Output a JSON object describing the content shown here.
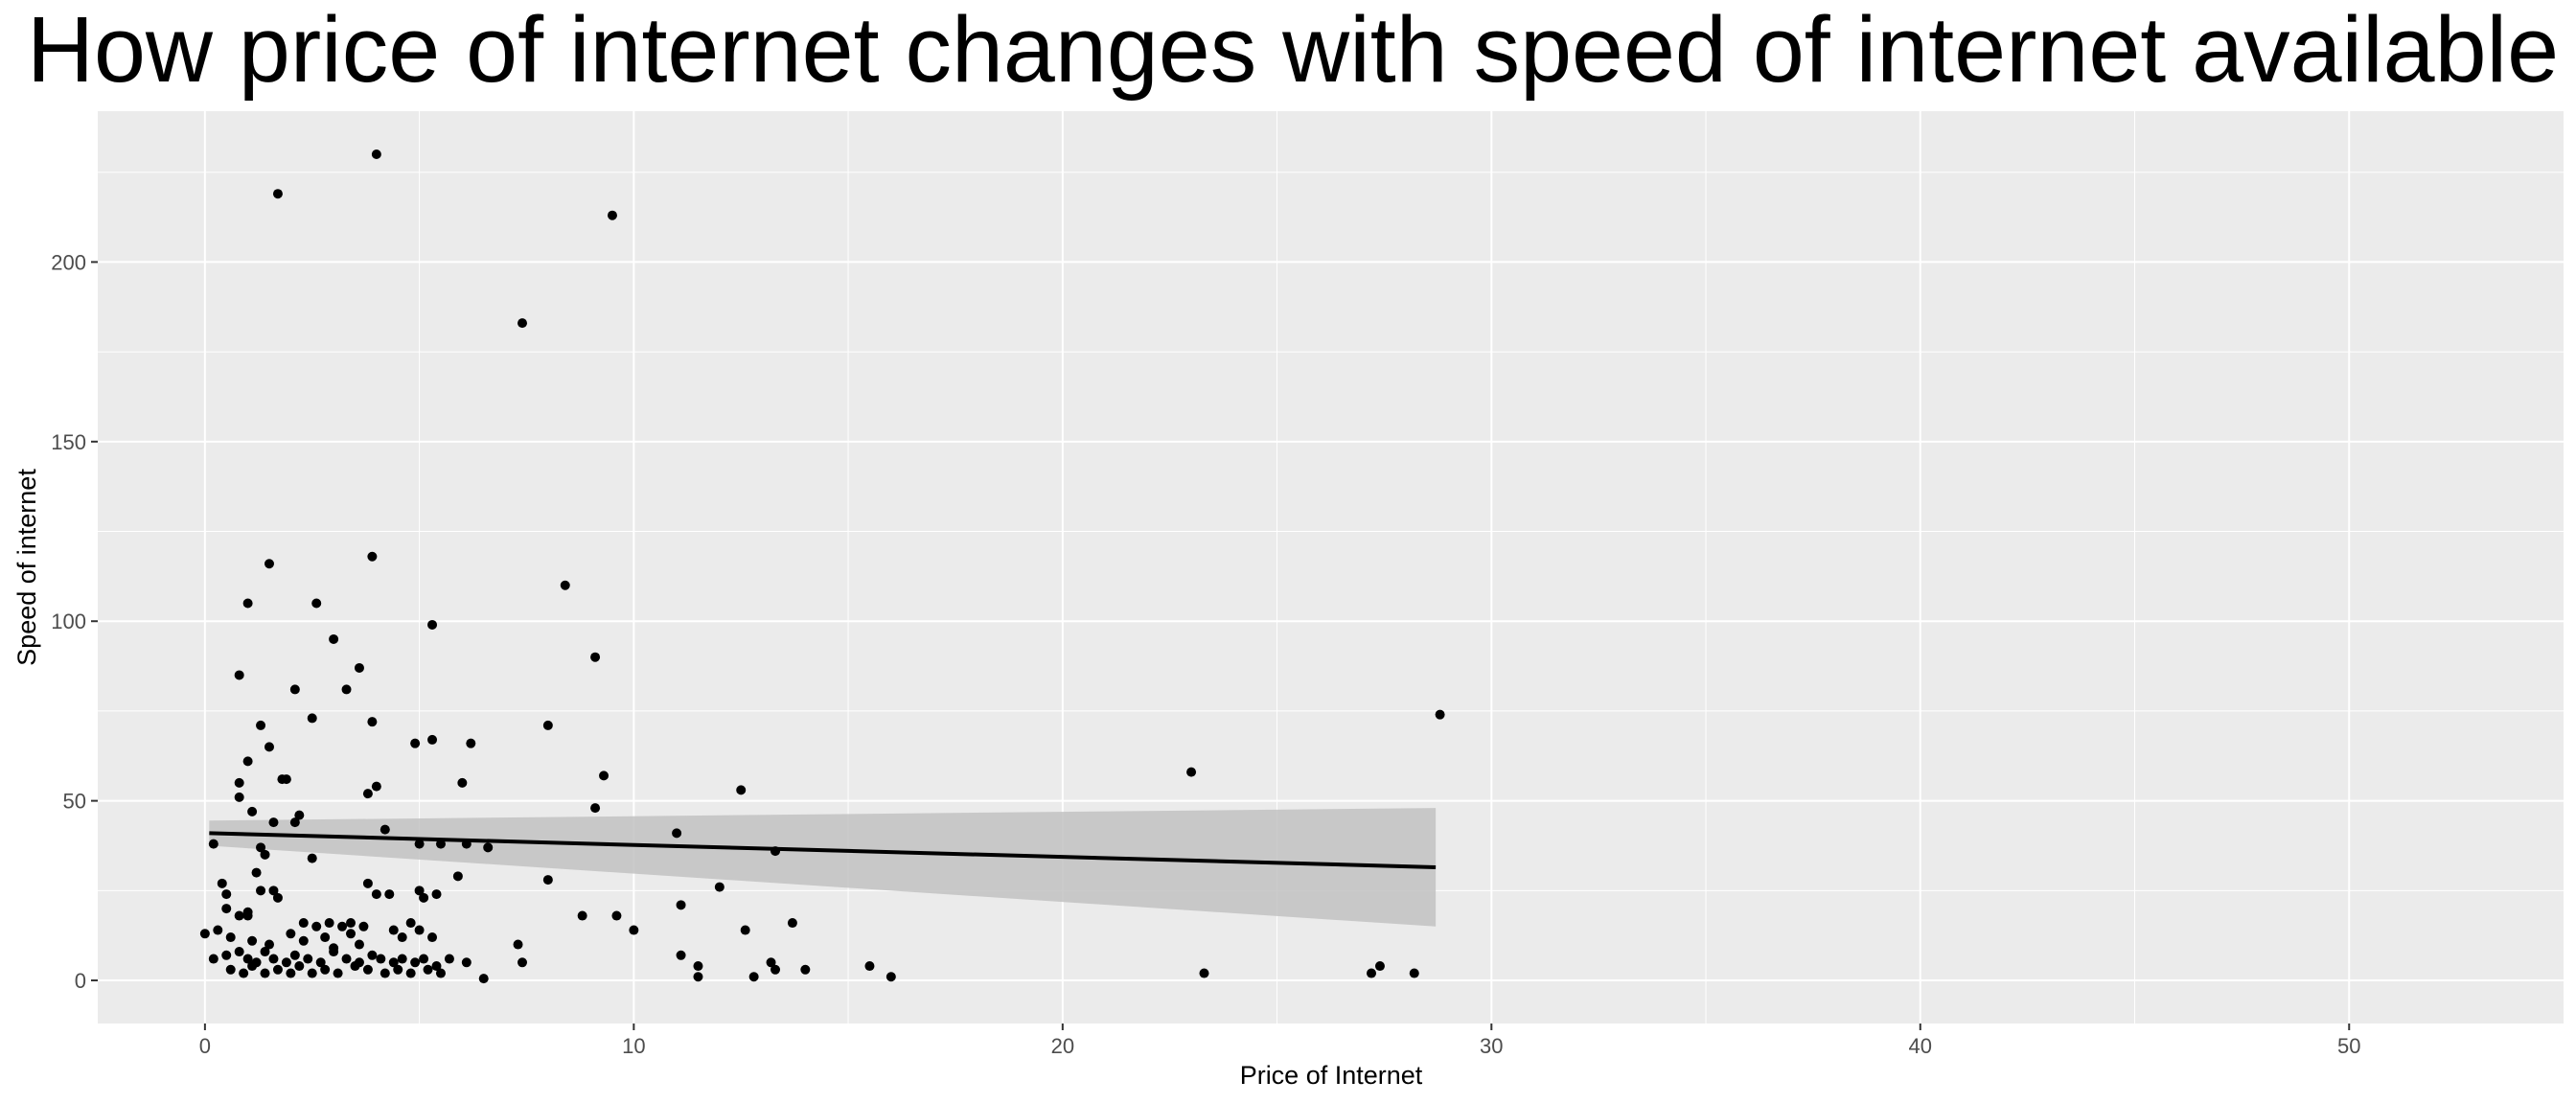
{
  "chart_data": {
    "type": "scatter",
    "title": "How price of internet changes with speed of internet available",
    "xlabel": "Price of Internet",
    "ylabel": "Speed of internet",
    "xlim": [
      -2.5,
      55
    ],
    "ylim": [
      -12,
      242
    ],
    "x_ticks": [
      0,
      10,
      20,
      30,
      40,
      50
    ],
    "y_ticks": [
      0,
      50,
      100,
      150,
      200
    ],
    "grid": true,
    "colors": {
      "panel": "#ebebeb",
      "grid": "#ffffff",
      "points": "#000000",
      "trend_line": "#000000",
      "confidence_band": "#c2c2c2"
    },
    "trend_line": {
      "method": "linear",
      "x": [
        0.1,
        28.7
      ],
      "y": [
        41,
        31.5
      ],
      "ci_lower": [
        37.5,
        15
      ],
      "ci_upper": [
        44.5,
        48
      ]
    },
    "points": [
      [
        1.7,
        219
      ],
      [
        4.0,
        230
      ],
      [
        9.5,
        213
      ],
      [
        7.4,
        183
      ],
      [
        1.5,
        116
      ],
      [
        3.9,
        118
      ],
      [
        2.6,
        105
      ],
      [
        1.0,
        105
      ],
      [
        8.4,
        110
      ],
      [
        3.0,
        95
      ],
      [
        5.3,
        99
      ],
      [
        9.1,
        90
      ],
      [
        3.6,
        87
      ],
      [
        0.8,
        85
      ],
      [
        2.1,
        81
      ],
      [
        3.3,
        81
      ],
      [
        1.3,
        71
      ],
      [
        2.5,
        73
      ],
      [
        3.9,
        72
      ],
      [
        8.0,
        71
      ],
      [
        5.3,
        67
      ],
      [
        6.2,
        66
      ],
      [
        4.9,
        66
      ],
      [
        1.5,
        65
      ],
      [
        1.0,
        61
      ],
      [
        6.0,
        55
      ],
      [
        1.8,
        56
      ],
      [
        1.9,
        56
      ],
      [
        0.8,
        55
      ],
      [
        4.0,
        54
      ],
      [
        0.8,
        51
      ],
      [
        3.8,
        52
      ],
      [
        9.3,
        57
      ],
      [
        12.5,
        53
      ],
      [
        23.0,
        58
      ],
      [
        28.8,
        74
      ],
      [
        1.1,
        47
      ],
      [
        2.2,
        46
      ],
      [
        2.1,
        44
      ],
      [
        1.6,
        44
      ],
      [
        9.1,
        48
      ],
      [
        4.2,
        42
      ],
      [
        11.0,
        41
      ],
      [
        5.0,
        38
      ],
      [
        5.5,
        38
      ],
      [
        6.1,
        38
      ],
      [
        0.2,
        38
      ],
      [
        1.3,
        37
      ],
      [
        1.4,
        35
      ],
      [
        2.5,
        34
      ],
      [
        6.6,
        37
      ],
      [
        13.3,
        36
      ],
      [
        1.2,
        30
      ],
      [
        0.4,
        27
      ],
      [
        1.3,
        25
      ],
      [
        1.6,
        25
      ],
      [
        1.7,
        23
      ],
      [
        0.5,
        24
      ],
      [
        3.8,
        27
      ],
      [
        4.0,
        24
      ],
      [
        4.3,
        24
      ],
      [
        5.0,
        25
      ],
      [
        5.1,
        23
      ],
      [
        5.4,
        24
      ],
      [
        5.9,
        29
      ],
      [
        8.0,
        28
      ],
      [
        1.0,
        19
      ],
      [
        12.0,
        26
      ],
      [
        0.5,
        20
      ],
      [
        0.8,
        18
      ],
      [
        1.0,
        18
      ],
      [
        2.3,
        16
      ],
      [
        2.6,
        15
      ],
      [
        2.9,
        16
      ],
      [
        3.2,
        15
      ],
      [
        3.4,
        16
      ],
      [
        3.7,
        15
      ],
      [
        4.4,
        14
      ],
      [
        4.8,
        16
      ],
      [
        5.0,
        14
      ],
      [
        8.8,
        18
      ],
      [
        9.6,
        18
      ],
      [
        11.1,
        21
      ],
      [
        12.6,
        14
      ],
      [
        13.7,
        16
      ],
      [
        10.0,
        14
      ],
      [
        0.0,
        13
      ],
      [
        0.3,
        14
      ],
      [
        0.6,
        12
      ],
      [
        1.1,
        11
      ],
      [
        1.5,
        10
      ],
      [
        2.0,
        13
      ],
      [
        2.3,
        11
      ],
      [
        2.8,
        12
      ],
      [
        3.0,
        9
      ],
      [
        3.4,
        13
      ],
      [
        3.6,
        10
      ],
      [
        4.6,
        12
      ],
      [
        5.3,
        12
      ],
      [
        7.3,
        10
      ],
      [
        0.2,
        6
      ],
      [
        0.5,
        7
      ],
      [
        0.8,
        8
      ],
      [
        1.0,
        6
      ],
      [
        1.2,
        5
      ],
      [
        1.4,
        8
      ],
      [
        1.6,
        6
      ],
      [
        1.9,
        5
      ],
      [
        2.1,
        7
      ],
      [
        2.4,
        6
      ],
      [
        2.7,
        5
      ],
      [
        3.0,
        8
      ],
      [
        3.3,
        6
      ],
      [
        3.6,
        5
      ],
      [
        3.9,
        7
      ],
      [
        4.1,
        6
      ],
      [
        4.4,
        5
      ],
      [
        4.6,
        6
      ],
      [
        4.9,
        5
      ],
      [
        5.1,
        6
      ],
      [
        5.4,
        4
      ],
      [
        5.7,
        6
      ],
      [
        6.1,
        5
      ],
      [
        7.4,
        5
      ],
      [
        11.1,
        7
      ],
      [
        11.5,
        4
      ],
      [
        13.2,
        5
      ],
      [
        0.6,
        3
      ],
      [
        0.9,
        2
      ],
      [
        1.1,
        4
      ],
      [
        1.4,
        2
      ],
      [
        1.7,
        3
      ],
      [
        2.0,
        2
      ],
      [
        2.2,
        4
      ],
      [
        2.5,
        2
      ],
      [
        2.8,
        3
      ],
      [
        3.1,
        2
      ],
      [
        3.5,
        4
      ],
      [
        3.8,
        3
      ],
      [
        4.2,
        2
      ],
      [
        4.5,
        3
      ],
      [
        4.8,
        2
      ],
      [
        5.2,
        3
      ],
      [
        5.5,
        2
      ],
      [
        6.5,
        0.5
      ],
      [
        11.5,
        1
      ],
      [
        12.8,
        1
      ],
      [
        13.3,
        3
      ],
      [
        14.0,
        3
      ],
      [
        15.5,
        4
      ],
      [
        16.0,
        1
      ],
      [
        23.3,
        2
      ],
      [
        27.2,
        2
      ],
      [
        27.4,
        4
      ],
      [
        28.2,
        2
      ]
    ]
  }
}
